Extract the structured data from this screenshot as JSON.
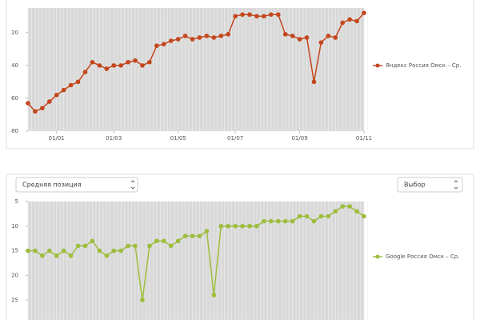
{
  "controls": {
    "metric_select": "Средняя позиция",
    "choice_select": "Выбор"
  },
  "chart_data": [
    {
      "type": "line",
      "y_inverted": true,
      "categories": [
        null,
        null,
        null,
        null,
        "01/01",
        null,
        null,
        null,
        null,
        null,
        null,
        null,
        "01/03",
        null,
        null,
        null,
        null,
        null,
        null,
        null,
        null,
        "01/05",
        null,
        null,
        null,
        null,
        null,
        null,
        null,
        "01/07",
        null,
        null,
        null,
        null,
        null,
        null,
        null,
        null,
        "01/09",
        null,
        null,
        null,
        null,
        null,
        null,
        null,
        null,
        "01/11"
      ],
      "series": [
        {
          "name": "Яндекс Россия Омск – Ср.",
          "color": "#c4461c",
          "values": [
            63,
            68,
            66,
            62,
            58,
            55,
            52,
            50,
            44,
            38,
            40,
            42,
            40,
            40,
            38,
            37,
            40,
            38,
            28,
            27,
            25,
            24,
            22,
            24,
            23,
            22,
            23,
            22,
            21,
            10,
            9,
            9,
            10,
            10,
            9,
            9,
            21,
            22,
            24,
            23,
            50,
            26,
            22,
            23,
            14,
            12,
            13,
            8
          ]
        }
      ],
      "ylim": [
        5,
        80
      ],
      "yticks": [
        20,
        40,
        60,
        80
      ],
      "legend": "right"
    },
    {
      "type": "line",
      "y_inverted": true,
      "categories": [
        null,
        null,
        null,
        null,
        null,
        null,
        null,
        null,
        null,
        null,
        null,
        null,
        null,
        null,
        null,
        null,
        null,
        null,
        null,
        null,
        null,
        null,
        null,
        null,
        null,
        null,
        null,
        null,
        null,
        null,
        null,
        null,
        null,
        null,
        null,
        null,
        null,
        null,
        null,
        null,
        null,
        null,
        null,
        null,
        null,
        null,
        null,
        null
      ],
      "series": [
        {
          "name": "Google Россия Омск – Ср.",
          "color": "#9dbd3c",
          "values": [
            15,
            15,
            16,
            15,
            16,
            15,
            16,
            14,
            14,
            13,
            15,
            16,
            15,
            15,
            14,
            14,
            25,
            14,
            13,
            13,
            14,
            13,
            12,
            12,
            12,
            11,
            24,
            10,
            10,
            10,
            10,
            10,
            10,
            9,
            9,
            9,
            9,
            9,
            8,
            8,
            9,
            8,
            8,
            7,
            6,
            6,
            7,
            8
          ]
        }
      ],
      "ylim": [
        5,
        29
      ],
      "yticks": [
        5,
        10,
        15,
        20,
        25
      ],
      "legend": "right"
    }
  ]
}
